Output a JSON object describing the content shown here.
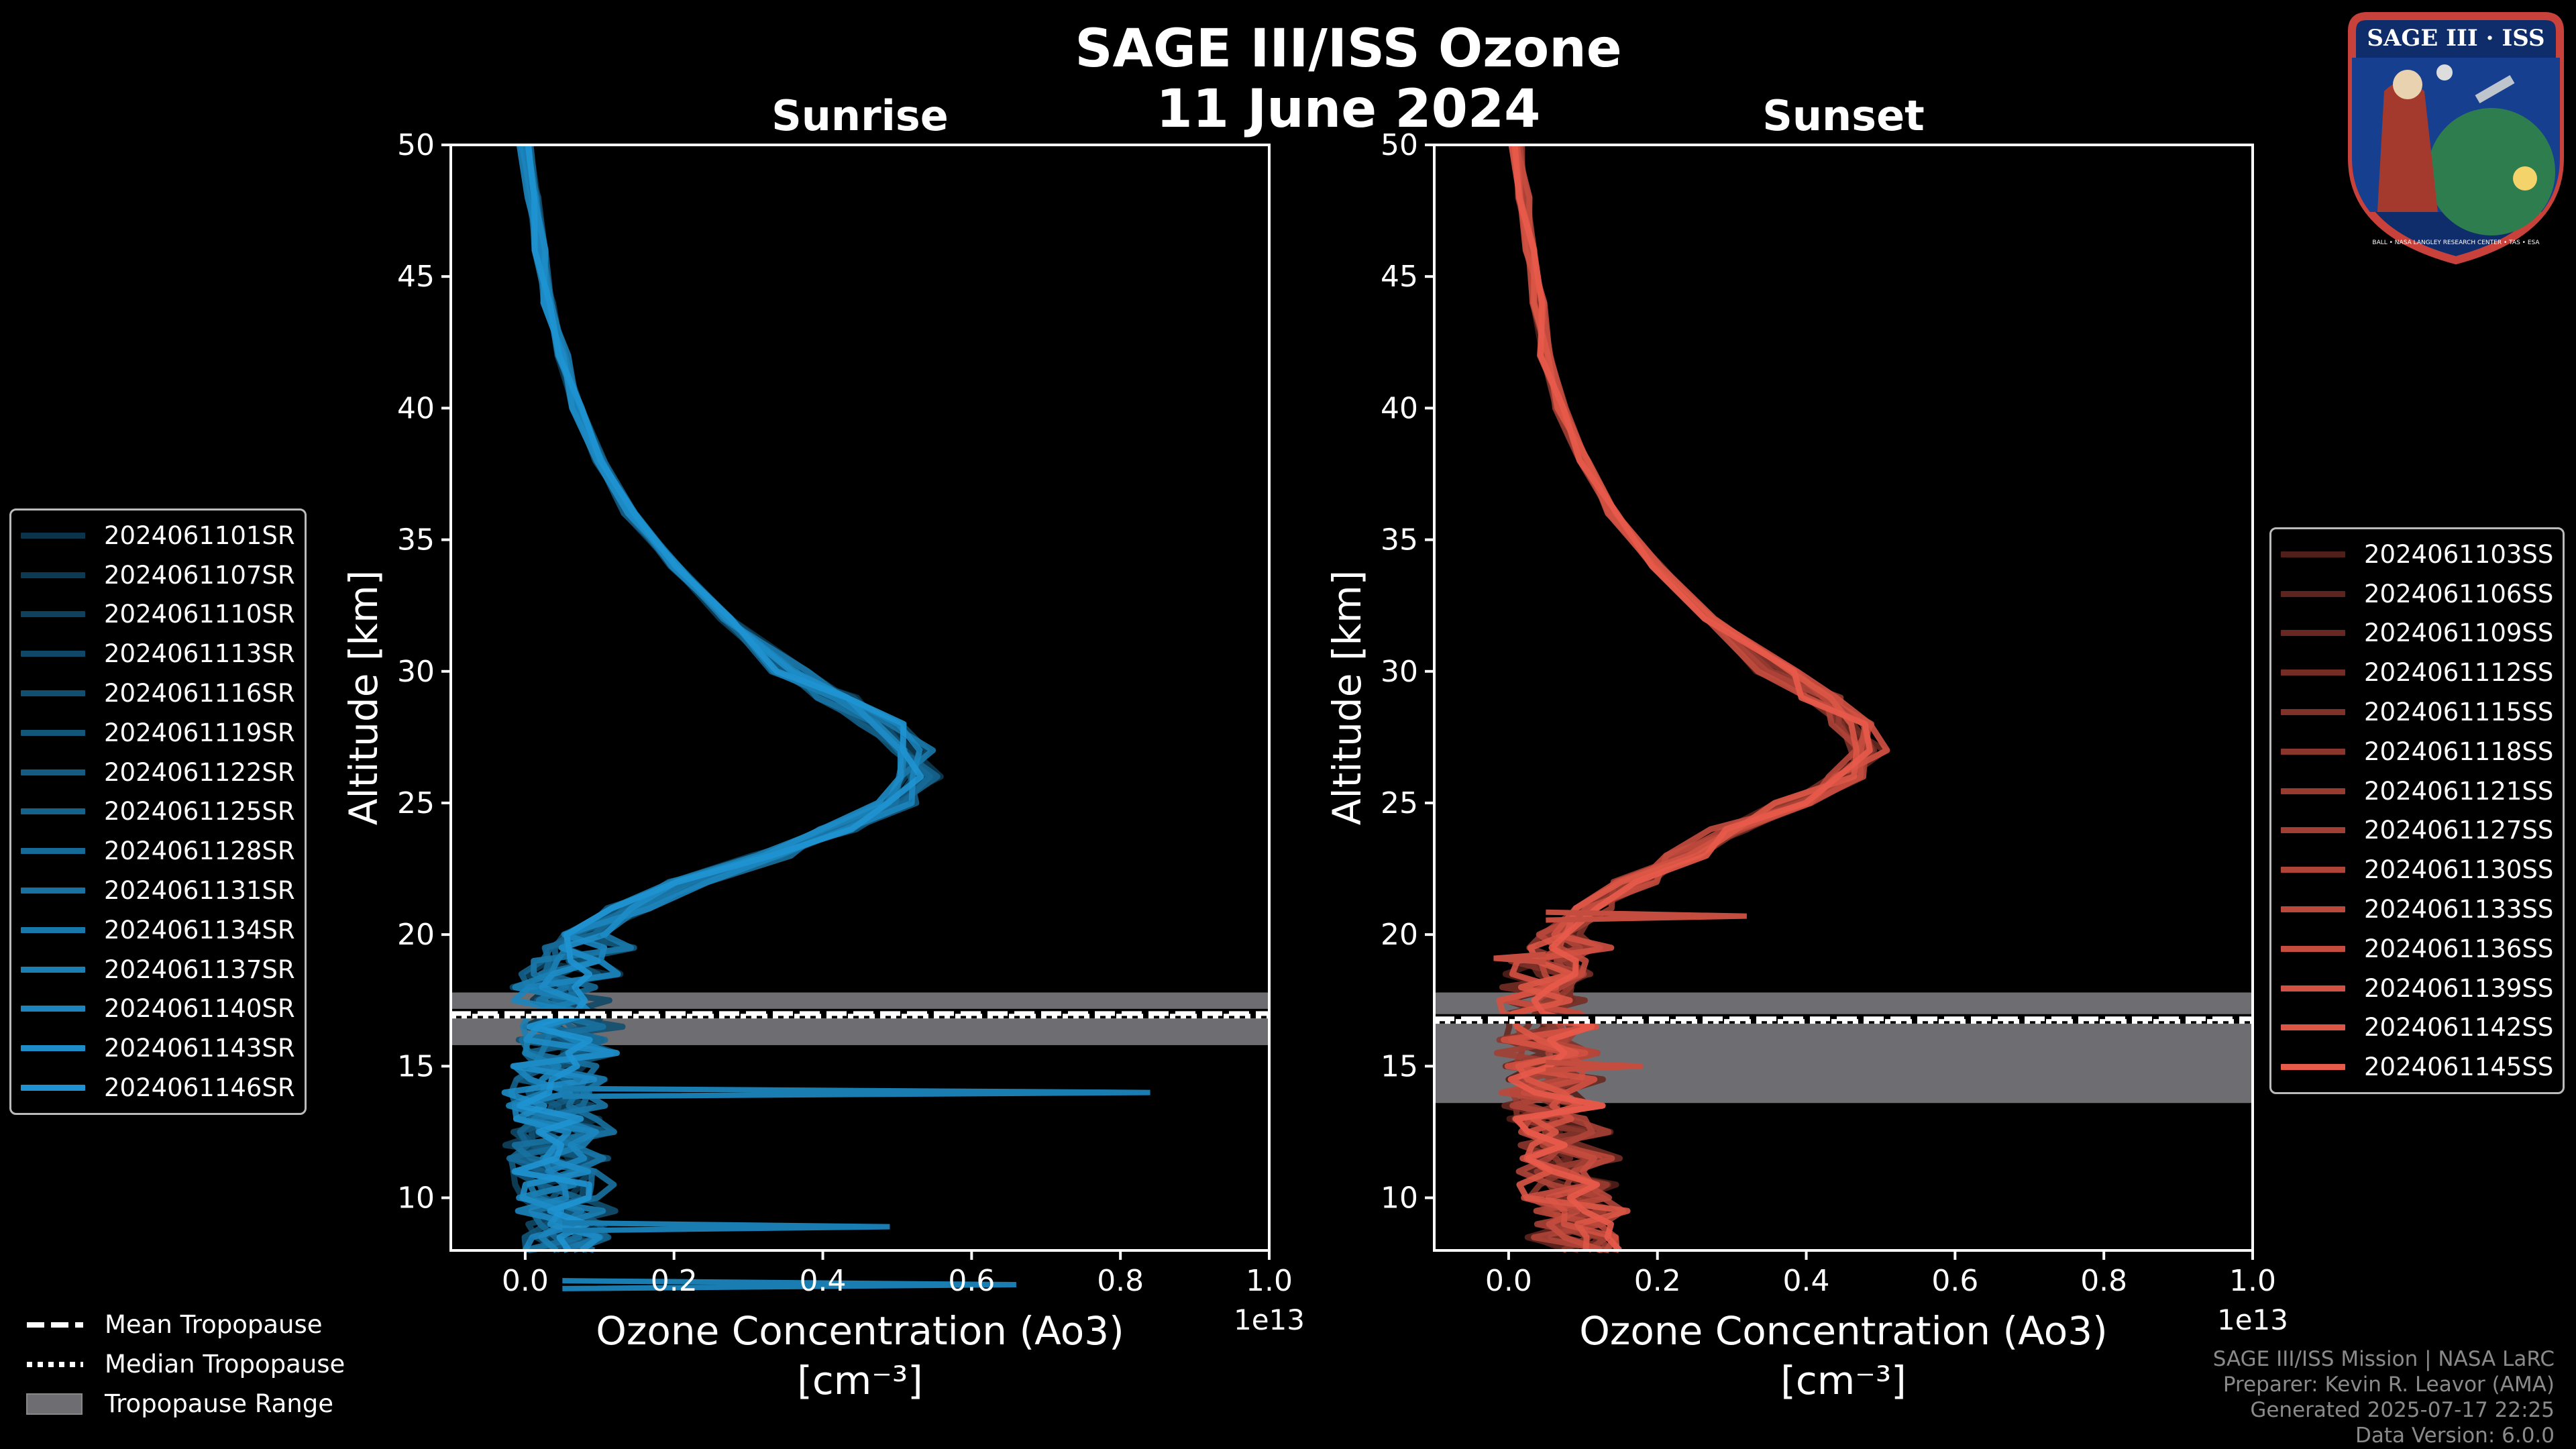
{
  "header": {
    "title_line1": "SAGE III/ISS Ozone",
    "title_line2": "11 June 2024"
  },
  "logo": {
    "text_top": "SAGE III · ISS",
    "text_ring": "BALL • NASA LANGLEY RESEARCH CENTER • TAS • ESA"
  },
  "colors": {
    "sunrise": "#1f93d1",
    "sunset": "#e85a4a",
    "tropopause_band": "#6e6e72",
    "background": "#000000"
  },
  "chart_data": [
    {
      "type": "line",
      "title": "Sunrise",
      "xlabel_line1": "Ozone Concentration (Ao3)",
      "xlabel_line2": "[cm⁻³]",
      "ylabel": "Altitude [km]",
      "x_multiplier": "1e13",
      "xlim": [
        -0.1,
        1.0
      ],
      "ylim": [
        8,
        50
      ],
      "xticks": [
        "0.0",
        "0.2",
        "0.4",
        "0.6",
        "0.8",
        "1.0"
      ],
      "yticks": [
        "10",
        "15",
        "20",
        "25",
        "30",
        "35",
        "40",
        "45",
        "50"
      ],
      "legend": [
        "2024061101SR",
        "2024061107SR",
        "2024061110SR",
        "2024061113SR",
        "2024061116SR",
        "2024061119SR",
        "2024061122SR",
        "2024061125SR",
        "2024061128SR",
        "2024061131SR",
        "2024061134SR",
        "2024061137SR",
        "2024061140SR",
        "2024061143SR",
        "2024061146SR"
      ],
      "mean_profile": {
        "altitude_km": [
          50,
          48,
          46,
          44,
          42,
          40,
          38,
          36,
          34,
          32,
          30,
          29,
          28,
          27,
          26,
          25,
          24,
          23,
          22,
          21,
          20,
          19,
          18,
          17,
          16,
          15,
          14,
          13,
          12,
          11,
          10,
          9,
          8
        ],
        "ozone_1e13": [
          0.0,
          0.01,
          0.02,
          0.03,
          0.05,
          0.07,
          0.1,
          0.14,
          0.2,
          0.27,
          0.36,
          0.42,
          0.48,
          0.52,
          0.53,
          0.5,
          0.42,
          0.33,
          0.22,
          0.14,
          0.08,
          0.05,
          0.04,
          0.05,
          0.05,
          0.04,
          0.03,
          0.04,
          0.03,
          0.04,
          0.04,
          0.05,
          0.05
        ]
      },
      "spikes": [
        {
          "altitude_km": 14.0,
          "ozone_1e13": 0.84
        },
        {
          "altitude_km": 6.7,
          "ozone_1e13": 0.66
        },
        {
          "altitude_km": 8.9,
          "ozone_1e13": 0.49
        }
      ],
      "tropopause": {
        "mean_km": 17.0,
        "median_km": 16.9,
        "range_km": [
          15.8,
          17.8
        ]
      }
    },
    {
      "type": "line",
      "title": "Sunset",
      "xlabel_line1": "Ozone Concentration (Ao3)",
      "xlabel_line2": "[cm⁻³]",
      "ylabel": "Altitude [km]",
      "x_multiplier": "1e13",
      "xlim": [
        -0.1,
        1.0
      ],
      "ylim": [
        8,
        50
      ],
      "xticks": [
        "0.0",
        "0.2",
        "0.4",
        "0.6",
        "0.8",
        "1.0"
      ],
      "yticks": [
        "10",
        "15",
        "20",
        "25",
        "30",
        "35",
        "40",
        "45",
        "50"
      ],
      "legend": [
        "2024061103SS",
        "2024061106SS",
        "2024061109SS",
        "2024061112SS",
        "2024061115SS",
        "2024061118SS",
        "2024061121SS",
        "2024061127SS",
        "2024061130SS",
        "2024061133SS",
        "2024061136SS",
        "2024061139SS",
        "2024061142SS",
        "2024061145SS"
      ],
      "mean_profile": {
        "altitude_km": [
          50,
          48,
          46,
          44,
          42,
          40,
          38,
          36,
          34,
          32,
          30,
          29,
          28,
          27,
          26,
          25,
          24,
          23,
          22,
          21,
          20,
          19,
          18,
          17,
          16,
          15,
          14,
          13,
          12,
          11,
          10,
          9,
          8
        ],
        "ozone_1e13": [
          0.01,
          0.02,
          0.03,
          0.04,
          0.05,
          0.07,
          0.1,
          0.14,
          0.2,
          0.27,
          0.36,
          0.42,
          0.46,
          0.48,
          0.46,
          0.38,
          0.3,
          0.24,
          0.17,
          0.11,
          0.07,
          0.05,
          0.04,
          0.04,
          0.04,
          0.05,
          0.05,
          0.06,
          0.07,
          0.07,
          0.08,
          0.08,
          0.09
        ]
      },
      "spikes": [
        {
          "altitude_km": 20.7,
          "ozone_1e13": 0.32
        },
        {
          "altitude_km": 15.0,
          "ozone_1e13": 0.18
        },
        {
          "altitude_km": 19.1,
          "ozone_1e13": -0.02
        }
      ],
      "tropopause": {
        "mean_km": 16.8,
        "median_km": 16.7,
        "range_km": [
          13.6,
          17.8
        ]
      }
    }
  ],
  "tropopause_legend": [
    "Mean Tropopause",
    "Median Tropopause",
    "Tropopause Range"
  ],
  "footer": {
    "line1": "SAGE III/ISS Mission | NASA LaRC",
    "line2": "Preparer: Kevin R. Leavor (AMA)",
    "line3": "Generated 2025-07-17 22:25",
    "line4": "Data Version: 6.0.0"
  }
}
